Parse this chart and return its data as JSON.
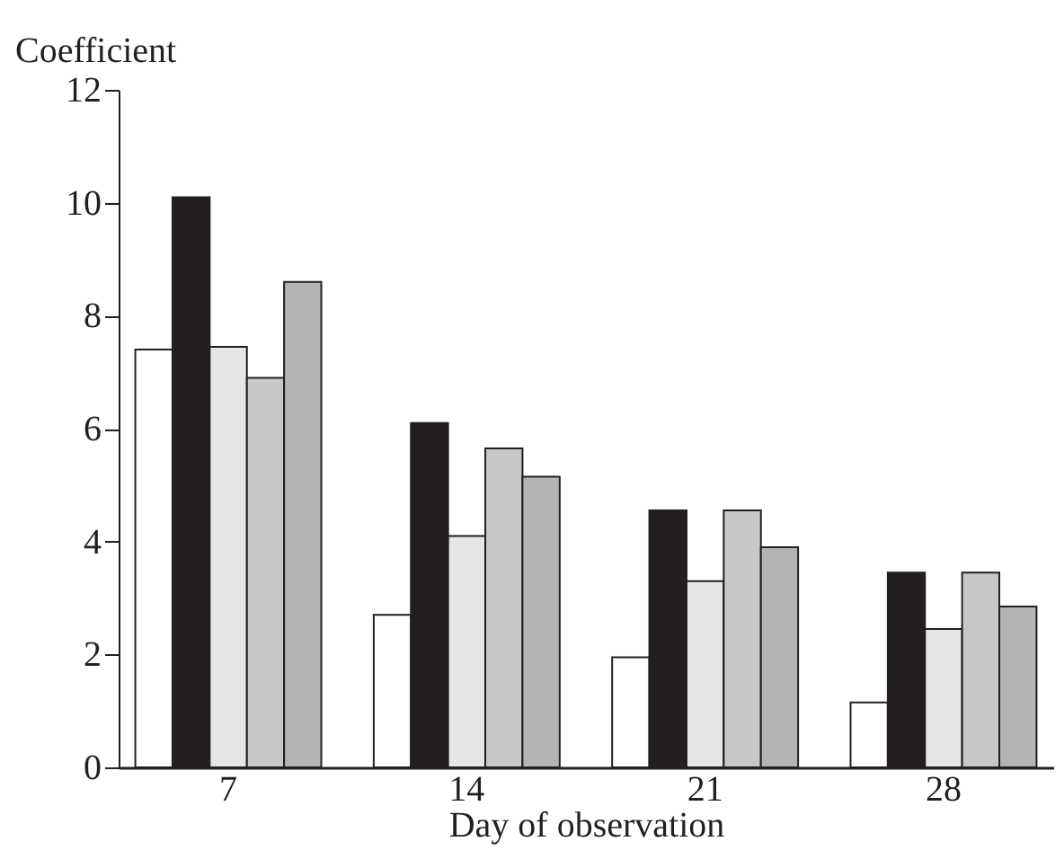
{
  "chart_data": {
    "type": "bar",
    "xlabel": "Day of observation",
    "ylabel": "Coefficient",
    "categories": [
      "7",
      "14",
      "21",
      "28"
    ],
    "ylim": [
      0,
      12
    ],
    "yticks": [
      0,
      2,
      4,
      6,
      8,
      10,
      12
    ],
    "grid": false,
    "legend": false,
    "series": [
      {
        "color": "#ffffff",
        "values": [
          7.4,
          2.7,
          1.95,
          1.15
        ]
      },
      {
        "color": "#231f20",
        "values": [
          10.1,
          6.1,
          4.55,
          3.45
        ]
      },
      {
        "color": "#e6e6e6",
        "values": [
          7.45,
          4.1,
          3.3,
          2.45
        ]
      },
      {
        "color": "#c8c8c8",
        "values": [
          6.9,
          5.65,
          4.55,
          3.45
        ]
      },
      {
        "color": "#b4b4b4",
        "values": [
          8.6,
          5.15,
          3.9,
          2.85
        ]
      }
    ]
  }
}
